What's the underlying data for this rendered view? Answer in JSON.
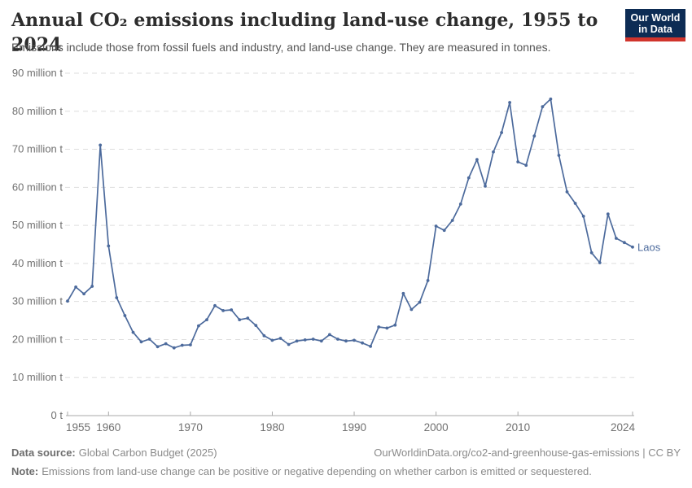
{
  "header": {
    "title": "Annual CO₂ emissions including land-use change, 1955 to 2024",
    "subtitle": "Emissions include those from fossil fuels and industry, and land-use change. They are measured in tonnes."
  },
  "logo": {
    "line1": "Our World",
    "line2": "in Data",
    "bg_color": "#0d2c54",
    "stripe_color": "#d0342c"
  },
  "chart_data": {
    "type": "line",
    "title": "Annual CO₂ emissions including land-use change, 1955 to 2024",
    "subtitle": "Emissions include those from fossil fuels and industry, and land-use change. They are measured in tonnes.",
    "entity": "Laos",
    "unit": "tonnes",
    "line_color": "#4C6A9C",
    "grid": "horizontal-dashed",
    "legend_position": "inline-entity-label",
    "xlim": [
      1955,
      2024
    ],
    "ylim": [
      0,
      90000000
    ],
    "xticks": [
      1955,
      1960,
      1970,
      1980,
      1990,
      2000,
      2010,
      2024
    ],
    "yticks": [
      {
        "value": 0,
        "label": "0 t"
      },
      {
        "value": 10,
        "label": "10 million t"
      },
      {
        "value": 20,
        "label": "20 million t"
      },
      {
        "value": 30,
        "label": "30 million t"
      },
      {
        "value": 40,
        "label": "40 million t"
      },
      {
        "value": 50,
        "label": "50 million t"
      },
      {
        "value": 60,
        "label": "60 million t"
      },
      {
        "value": 70,
        "label": "70 million t"
      },
      {
        "value": 80,
        "label": "80 million t"
      },
      {
        "value": 90,
        "label": "90 million t"
      }
    ],
    "x": [
      1955,
      1956,
      1957,
      1958,
      1959,
      1960,
      1961,
      1962,
      1963,
      1964,
      1965,
      1966,
      1967,
      1968,
      1969,
      1970,
      1971,
      1972,
      1973,
      1974,
      1975,
      1976,
      1977,
      1978,
      1979,
      1980,
      1981,
      1982,
      1983,
      1984,
      1985,
      1986,
      1987,
      1988,
      1989,
      1990,
      1991,
      1992,
      1993,
      1994,
      1995,
      1996,
      1997,
      1998,
      1999,
      2000,
      2001,
      2002,
      2003,
      2004,
      2005,
      2006,
      2007,
      2008,
      2009,
      2010,
      2011,
      2012,
      2013,
      2014,
      2015,
      2016,
      2017,
      2018,
      2019,
      2020,
      2021,
      2022,
      2023,
      2024
    ],
    "series": [
      {
        "name": "Laos",
        "color": "#4C6A9C",
        "values_million_t": [
          30.1,
          33.8,
          32.0,
          34.0,
          71.1,
          44.6,
          31.0,
          26.3,
          21.9,
          19.4,
          20.1,
          18.1,
          18.9,
          17.8,
          18.5,
          18.6,
          23.6,
          25.2,
          28.9,
          27.6,
          27.8,
          25.2,
          25.6,
          23.7,
          21.0,
          19.8,
          20.3,
          18.7,
          19.6,
          19.9,
          20.1,
          19.6,
          21.3,
          20.1,
          19.6,
          19.8,
          19.1,
          18.2,
          23.3,
          23.0,
          23.8,
          32.1,
          27.9,
          29.8,
          35.5,
          49.8,
          48.7,
          51.3,
          55.6,
          62.5,
          67.3,
          60.3,
          69.3,
          74.4,
          82.3,
          66.7,
          65.8,
          73.5,
          81.2,
          83.2,
          68.4,
          58.8,
          55.8,
          52.4,
          42.8,
          40.2,
          53.0,
          46.6,
          45.5,
          44.3
        ]
      }
    ]
  },
  "colors": {
    "grid_line": "#dedede",
    "axis_line": "#a8a8a8",
    "tick_label": "#717171",
    "title": "#2d2d2d",
    "subtitle": "#555555"
  },
  "footer": {
    "source_label": "Data source:",
    "source_value": "Global Carbon Budget (2025)",
    "link": "OurWorldinData.org/co2-and-greenhouse-gas-emissions | CC BY",
    "note_label": "Note:",
    "note_value": "Emissions from land-use change can be positive or negative depending on whether carbon is emitted or sequestered."
  }
}
